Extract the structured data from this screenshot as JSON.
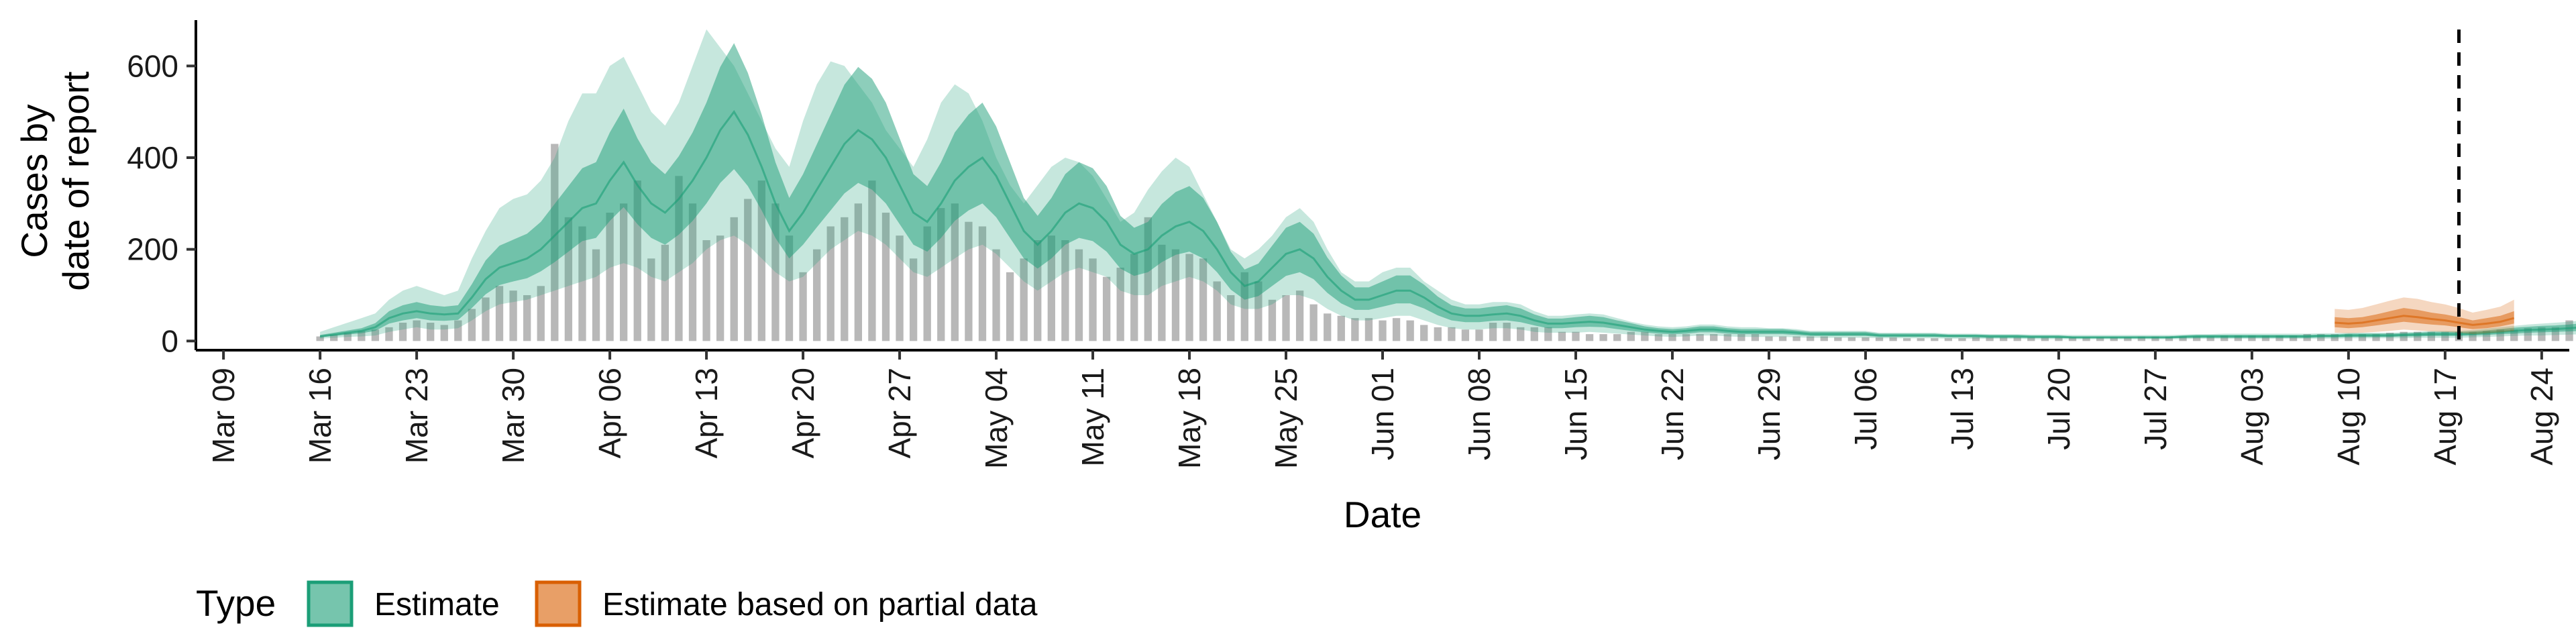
{
  "chart_data": {
    "type": "bar",
    "title": "",
    "xlabel": "Date",
    "ylabel_lines": [
      "Cases by",
      "date of report"
    ],
    "ylim": [
      -20,
      700
    ],
    "yticks": [
      0,
      200,
      400,
      600
    ],
    "x_tick_labels": [
      "Mar 09",
      "Mar 16",
      "Mar 23",
      "Mar 30",
      "Apr 06",
      "Apr 13",
      "Apr 20",
      "Apr 27",
      "May 04",
      "May 11",
      "May 18",
      "May 25",
      "Jun 01",
      "Jun 08",
      "Jun 15",
      "Jun 22",
      "Jun 29",
      "Jul 06",
      "Jul 13",
      "Jul 20",
      "Jul 27",
      "Aug 03",
      "Aug 10",
      "Aug 17",
      "Aug 24"
    ],
    "x_range_days": [
      -2,
      170
    ],
    "date_reference": "Mar 09",
    "estimate_start_date": "Mar 16",
    "partial_start_date": "Aug 09",
    "vline_date": "Aug 18",
    "vline_style": "dashed",
    "grid": false,
    "legend": {
      "position": "bottom-left",
      "title": "Type",
      "entries": [
        {
          "label": "Estimate",
          "color": "#1b9e77"
        },
        {
          "label": "Estimate based on partial data",
          "color": "#d95f02"
        }
      ]
    },
    "colors": {
      "estimate": "#1b9e77",
      "partial": "#d95f02",
      "reported_bars": "#a6a6a6"
    },
    "reported_cases_by_day": [
      10,
      14,
      18,
      22,
      25,
      30,
      40,
      45,
      40,
      35,
      45,
      70,
      95,
      120,
      110,
      100,
      120,
      430,
      270,
      250,
      200,
      280,
      300,
      350,
      180,
      210,
      360,
      300,
      220,
      230,
      270,
      310,
      350,
      300,
      230,
      150,
      200,
      250,
      270,
      300,
      350,
      280,
      230,
      180,
      250,
      290,
      300,
      260,
      250,
      200,
      150,
      180,
      220,
      230,
      220,
      200,
      180,
      140,
      160,
      190,
      270,
      210,
      200,
      190,
      180,
      130,
      100,
      150,
      130,
      90,
      100,
      110,
      80,
      60,
      55,
      50,
      50,
      45,
      50,
      45,
      35,
      30,
      30,
      25,
      25,
      40,
      40,
      30,
      30,
      30,
      20,
      20,
      15,
      15,
      15,
      20,
      20,
      15,
      15,
      15,
      15,
      15,
      15,
      15,
      15,
      10,
      10,
      10,
      10,
      10,
      8,
      8,
      8,
      8,
      8,
      6,
      6,
      6,
      6,
      6,
      8,
      8,
      8,
      8,
      8,
      8,
      8,
      8,
      8,
      8,
      8,
      8,
      10,
      10,
      10,
      10,
      10,
      10,
      12,
      12,
      12,
      12,
      12,
      12,
      15,
      15,
      15,
      15,
      15,
      15,
      18,
      20,
      20,
      20,
      20,
      20,
      20,
      22,
      25,
      25,
      28,
      30,
      30,
      45,
      50,
      55,
      55,
      50,
      40,
      40,
      35,
      40,
      35,
      40,
      40,
      40,
      45,
      45
    ],
    "estimate_median": [
      10,
      14,
      18,
      22,
      30,
      50,
      60,
      65,
      60,
      58,
      60,
      95,
      135,
      160,
      170,
      180,
      200,
      230,
      260,
      290,
      300,
      350,
      390,
      340,
      300,
      280,
      310,
      350,
      400,
      460,
      500,
      450,
      380,
      300,
      240,
      280,
      330,
      380,
      430,
      460,
      440,
      400,
      340,
      280,
      260,
      300,
      350,
      380,
      400,
      360,
      300,
      240,
      210,
      240,
      280,
      300,
      290,
      260,
      210,
      190,
      200,
      230,
      250,
      260,
      240,
      200,
      150,
      120,
      130,
      160,
      190,
      200,
      180,
      140,
      110,
      90,
      90,
      100,
      110,
      110,
      95,
      75,
      60,
      55,
      55,
      58,
      60,
      55,
      45,
      38,
      38,
      40,
      42,
      40,
      35,
      30,
      25,
      22,
      20,
      22,
      25,
      25,
      22,
      20,
      20,
      20,
      20,
      18,
      15,
      15,
      15,
      15,
      15,
      12,
      12,
      12,
      12,
      12,
      11,
      11,
      11,
      10,
      10,
      10,
      9,
      9,
      9,
      8,
      8,
      8,
      8,
      8,
      8,
      8,
      8,
      9,
      10,
      10,
      10,
      10,
      10,
      10,
      10,
      10,
      10,
      11,
      11,
      12,
      12,
      12,
      12,
      13,
      14,
      15,
      15,
      15,
      16,
      18,
      20,
      22,
      24,
      25,
      26,
      28,
      30,
      35,
      40,
      45,
      50,
      55,
      55,
      60,
      62,
      40
    ],
    "estimate_lower90": [
      5,
      7,
      9,
      10,
      12,
      20,
      25,
      30,
      25,
      25,
      28,
      45,
      65,
      80,
      85,
      90,
      100,
      110,
      120,
      130,
      140,
      160,
      170,
      160,
      140,
      130,
      150,
      170,
      200,
      220,
      230,
      210,
      180,
      150,
      130,
      140,
      170,
      200,
      220,
      240,
      230,
      210,
      180,
      150,
      140,
      160,
      180,
      200,
      210,
      190,
      160,
      130,
      110,
      130,
      150,
      160,
      150,
      140,
      110,
      100,
      100,
      120,
      130,
      140,
      130,
      110,
      80,
      70,
      70,
      80,
      100,
      100,
      90,
      70,
      55,
      45,
      45,
      50,
      55,
      55,
      45,
      35,
      28,
      25,
      25,
      28,
      28,
      25,
      20,
      18,
      18,
      18,
      20,
      18,
      16,
      14,
      12,
      10,
      9,
      10,
      12,
      12,
      10,
      9,
      9,
      9,
      9,
      8,
      7,
      7,
      7,
      7,
      7,
      6,
      6,
      6,
      6,
      6,
      5,
      5,
      5,
      5,
      5,
      5,
      4,
      4,
      4,
      4,
      4,
      4,
      4,
      4,
      4,
      4,
      4,
      4,
      5,
      5,
      5,
      5,
      5,
      5,
      5,
      5,
      5,
      5,
      5,
      6,
      6,
      6,
      6,
      6,
      7,
      7,
      7,
      7,
      8,
      9,
      10,
      11,
      12,
      12,
      13,
      14,
      15,
      17,
      19,
      21,
      23,
      25,
      25,
      27,
      28,
      18
    ],
    "estimate_upper90": [
      20,
      30,
      40,
      50,
      60,
      90,
      110,
      120,
      110,
      100,
      110,
      180,
      240,
      290,
      310,
      320,
      350,
      400,
      480,
      540,
      540,
      600,
      620,
      560,
      500,
      470,
      520,
      600,
      680,
      640,
      600,
      540,
      480,
      420,
      380,
      480,
      560,
      610,
      600,
      560,
      520,
      460,
      420,
      380,
      440,
      520,
      560,
      540,
      480,
      400,
      340,
      300,
      340,
      380,
      400,
      390,
      360,
      310,
      260,
      280,
      330,
      370,
      400,
      380,
      320,
      260,
      200,
      180,
      200,
      230,
      270,
      290,
      260,
      200,
      150,
      130,
      130,
      150,
      160,
      160,
      130,
      110,
      90,
      80,
      80,
      85,
      85,
      80,
      65,
      55,
      55,
      58,
      60,
      58,
      50,
      42,
      36,
      32,
      30,
      32,
      36,
      36,
      32,
      30,
      30,
      28,
      28,
      26,
      22,
      22,
      22,
      22,
      22,
      18,
      18,
      18,
      18,
      18,
      16,
      16,
      16,
      15,
      15,
      15,
      14,
      14,
      14,
      13,
      13,
      13,
      13,
      13,
      13,
      13,
      13,
      14,
      15,
      15,
      16,
      16,
      16,
      16,
      16,
      16,
      16,
      17,
      17,
      18,
      18,
      18,
      18,
      19,
      20,
      22,
      22,
      22,
      24,
      27,
      30,
      33,
      36,
      38,
      40,
      42,
      45,
      52,
      60,
      68,
      75,
      80,
      80,
      88,
      92,
      60
    ],
    "estimate_lower50": [
      8,
      11,
      14,
      17,
      22,
      38,
      45,
      50,
      45,
      44,
      46,
      72,
      102,
      122,
      130,
      137,
      152,
      172,
      195,
      218,
      225,
      262,
      292,
      255,
      225,
      210,
      232,
      262,
      300,
      345,
      375,
      338,
      285,
      225,
      180,
      210,
      248,
      285,
      322,
      345,
      330,
      300,
      255,
      210,
      195,
      225,
      262,
      285,
      300,
      270,
      225,
      180,
      158,
      180,
      210,
      225,
      218,
      195,
      158,
      142,
      150,
      172,
      188,
      195,
      180,
      150,
      112,
      90,
      98,
      120,
      142,
      150,
      135,
      105,
      82,
      68,
      68,
      75,
      82,
      82,
      71,
      56,
      45,
      41,
      41,
      44,
      45,
      41,
      34,
      28,
      28,
      30,
      31,
      30,
      26,
      22,
      19,
      16,
      15,
      16,
      19,
      19,
      16,
      15,
      15,
      15,
      15,
      13,
      11,
      11,
      11,
      11,
      11,
      9,
      9,
      9,
      9,
      9,
      8,
      8,
      8,
      7,
      7,
      7,
      7,
      7,
      7,
      6,
      6,
      6,
      6,
      6,
      6,
      6,
      6,
      7,
      7,
      7,
      7,
      7,
      7,
      7,
      7,
      7,
      7,
      8,
      8,
      9,
      9,
      9,
      9,
      10,
      10,
      11,
      11,
      11,
      12,
      13,
      15,
      16,
      18,
      19,
      20,
      21,
      22,
      26,
      30,
      34,
      38,
      41,
      41,
      45,
      46,
      30
    ],
    "estimate_upper50": [
      13,
      18,
      23,
      28,
      39,
      65,
      78,
      85,
      78,
      75,
      78,
      124,
      176,
      208,
      221,
      234,
      260,
      299,
      338,
      377,
      390,
      455,
      507,
      442,
      390,
      364,
      403,
      455,
      520,
      598,
      650,
      585,
      494,
      390,
      312,
      364,
      429,
      494,
      559,
      598,
      572,
      520,
      442,
      364,
      338,
      390,
      455,
      494,
      520,
      468,
      390,
      312,
      273,
      312,
      364,
      390,
      377,
      338,
      273,
      247,
      260,
      299,
      325,
      338,
      312,
      260,
      195,
      156,
      169,
      208,
      247,
      260,
      234,
      182,
      143,
      117,
      117,
      130,
      143,
      143,
      123,
      97,
      78,
      71,
      71,
      75,
      78,
      71,
      58,
      49,
      49,
      52,
      55,
      52,
      45,
      39,
      32,
      28,
      26,
      28,
      32,
      32,
      28,
      26,
      26,
      26,
      26,
      23,
      20,
      20,
      20,
      20,
      20,
      16,
      16,
      16,
      16,
      16,
      14,
      14,
      14,
      13,
      13,
      13,
      12,
      12,
      12,
      10,
      10,
      10,
      10,
      10,
      10,
      10,
      10,
      12,
      13,
      13,
      13,
      13,
      13,
      13,
      13,
      13,
      13,
      14,
      14,
      16,
      16,
      16,
      16,
      17,
      18,
      20,
      20,
      20,
      21,
      23,
      26,
      29,
      31,
      33,
      34,
      36,
      39,
      45,
      52,
      58,
      65,
      72,
      72,
      78,
      81,
      52
    ],
    "partial_median": [
      40,
      38,
      40,
      45,
      50,
      55,
      52,
      48,
      45,
      40,
      35,
      38,
      42,
      50
    ],
    "partial_lower90": [
      18,
      17,
      18,
      20,
      22,
      25,
      23,
      21,
      20,
      18,
      15,
      17,
      19,
      22
    ],
    "partial_upper90": [
      70,
      68,
      72,
      80,
      88,
      95,
      92,
      85,
      80,
      72,
      62,
      68,
      75,
      90
    ],
    "partial_lower50": [
      30,
      28,
      30,
      34,
      38,
      42,
      39,
      36,
      34,
      30,
      26,
      28,
      32,
      38
    ],
    "partial_upper50": [
      52,
      50,
      52,
      58,
      65,
      72,
      68,
      62,
      58,
      52,
      45,
      50,
      55,
      65
    ]
  }
}
